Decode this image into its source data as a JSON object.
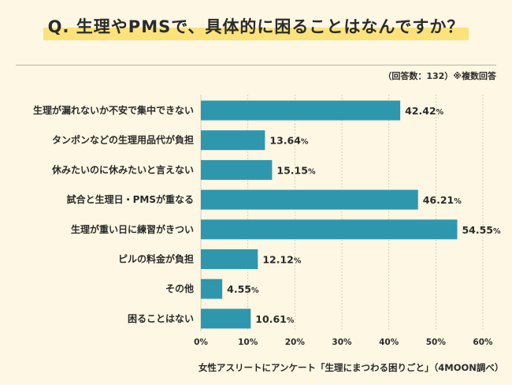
{
  "header": {
    "title": "Q. 生理やPMSで、具体的に困ることはなんですか？",
    "note": "（回答数：132）※複数回答"
  },
  "footer": {
    "source": "女性アスリートにアンケート「生理にまつわる困りごと」（4MOON調べ）"
  },
  "colors": {
    "bar": "#2e97ad",
    "background": "#fdf7e3",
    "title_highlight": "#fbe27a",
    "grid": "#c9c3b2"
  },
  "chart_data": {
    "type": "bar",
    "orientation": "horizontal",
    "categories": [
      "生理が漏れないか不安で集中できない",
      "タンポンなどの生理用品代が負担",
      "休みたいのに休みたいと言えない",
      "試合と生理日・PMSが重なる",
      "生理が重い日に練習がきつい",
      "ピルの料金が負担",
      "その他",
      "困ることはない"
    ],
    "values": [
      42.42,
      13.64,
      15.15,
      46.21,
      54.55,
      12.12,
      4.55,
      10.61
    ],
    "value_labels": [
      "42.42",
      "13.64",
      "15.15",
      "46.21",
      "54.55",
      "12.12",
      "4.55",
      "10.61"
    ],
    "value_suffix": "%",
    "xlim": [
      0,
      60
    ],
    "xticks": [
      0,
      10,
      20,
      30,
      40,
      50,
      60
    ],
    "xtick_labels": [
      "0%",
      "10%",
      "20%",
      "30%",
      "40%",
      "50%",
      "60%"
    ],
    "grid": true,
    "title": "",
    "xlabel": "",
    "ylabel": ""
  }
}
